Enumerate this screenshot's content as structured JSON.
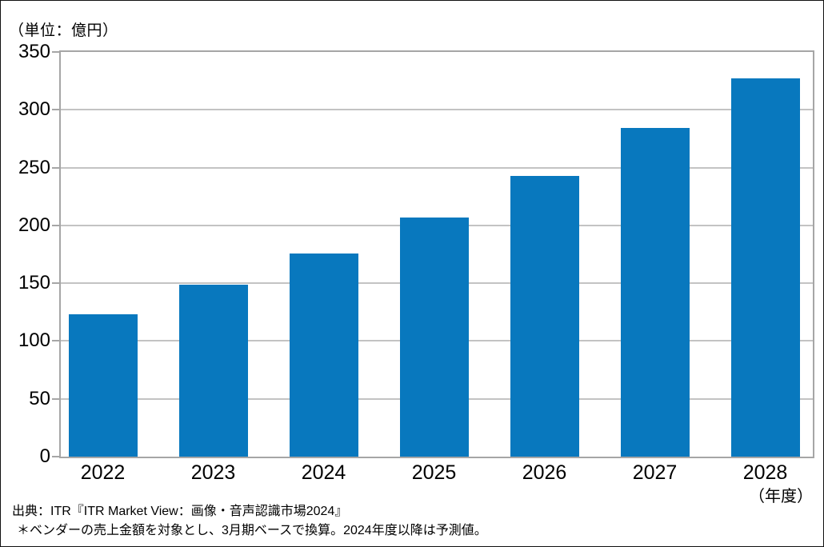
{
  "header": {
    "unit_label": "（単位：億円）"
  },
  "footer": {
    "axis_unit_label": "（年度）",
    "source": "出典：ITR『ITR Market View：画像・音声認識市場2024』",
    "note": "＊ベンダーの売上金額を対象とし、3月期ベースで換算。2024年度以降は予測値。"
  },
  "chart_data": {
    "type": "bar",
    "categories": [
      "2022",
      "2023",
      "2024",
      "2025",
      "2026",
      "2027",
      "2028"
    ],
    "values": [
      123,
      149,
      176,
      207,
      243,
      284,
      327
    ],
    "title": "",
    "xlabel": "年度",
    "ylabel": "億円",
    "ylim": [
      0,
      350
    ],
    "ytick_step": 50,
    "yticks": [
      0,
      50,
      100,
      150,
      200,
      250,
      300,
      350
    ],
    "grid": true,
    "legend_position": "none",
    "bar_color": "#0878BE",
    "gridline_color": "#C3C3C3",
    "axis_border_color": "#A6A6A6",
    "tick_label_color": "#000000"
  }
}
